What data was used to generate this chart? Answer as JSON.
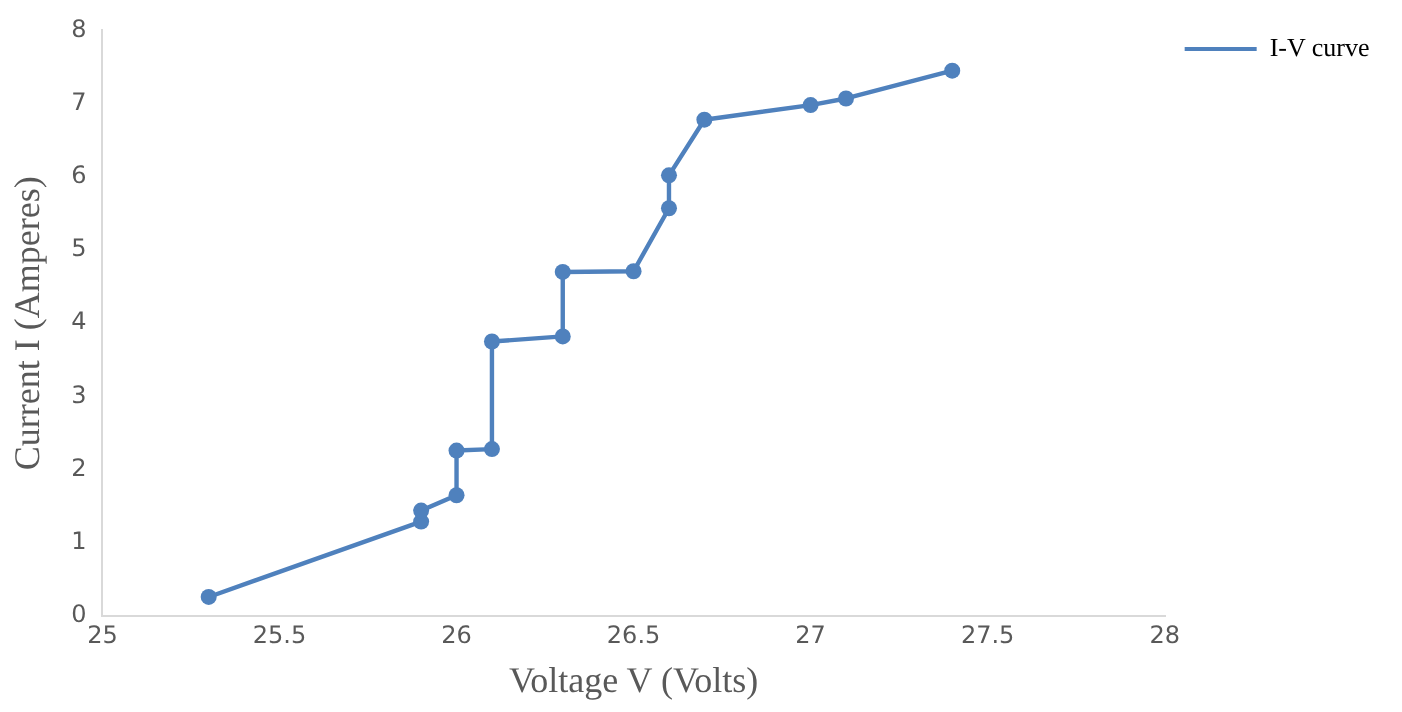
{
  "chart_data": {
    "type": "line",
    "xlabel": "Voltage V (Volts)",
    "ylabel": "Current I (Amperes)",
    "x": [
      25.3,
      25.9,
      25.9,
      26.0,
      26.0,
      26.1,
      26.1,
      26.3,
      26.3,
      26.5,
      26.6,
      26.6,
      26.7,
      27.0,
      27.1,
      27.4
    ],
    "series": [
      {
        "name": "I-V curve",
        "color": "#4f81bd",
        "values": [
          0.26,
          1.29,
          1.44,
          1.65,
          2.26,
          2.28,
          3.75,
          3.82,
          4.7,
          4.71,
          5.57,
          6.02,
          6.78,
          6.98,
          7.07,
          7.45
        ]
      }
    ],
    "xlim": [
      25,
      28
    ],
    "xticks": [
      25,
      25.5,
      26,
      26.5,
      27,
      27.5,
      28
    ],
    "ylim": [
      0,
      8
    ],
    "yticks": [
      0,
      1,
      2,
      3,
      4,
      5,
      6,
      7,
      8
    ],
    "grid": false,
    "legend": "top right",
    "marker": "circle",
    "line_style": "solid"
  }
}
